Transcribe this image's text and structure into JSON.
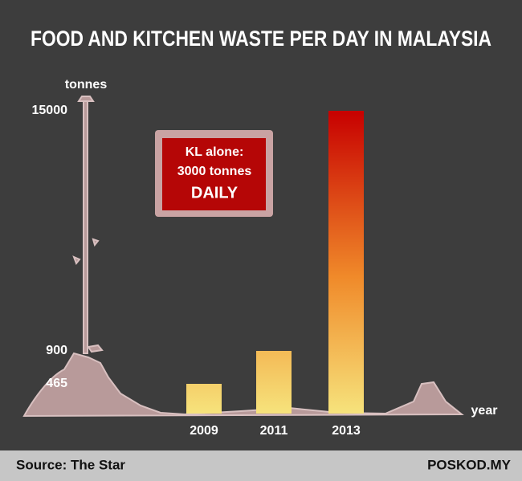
{
  "chart_data": {
    "type": "bar",
    "title": "FOOD AND KITCHEN WASTE PER DAY IN MALAYSIA",
    "y_label": "tonnes",
    "x_label": "year",
    "categories": [
      "2009",
      "2011",
      "2013"
    ],
    "values": [
      465,
      900,
      15000
    ],
    "color_gradient": [
      "#f6e37c",
      "#c70000"
    ],
    "ylim": [
      0,
      15000
    ],
    "yticks": [
      465,
      900,
      15000
    ],
    "annotation": {
      "lines": [
        "KL alone:",
        "3000 tonnes",
        "DAILY"
      ]
    },
    "source": "Source: The Star",
    "brand": "POSKOD.MY"
  }
}
